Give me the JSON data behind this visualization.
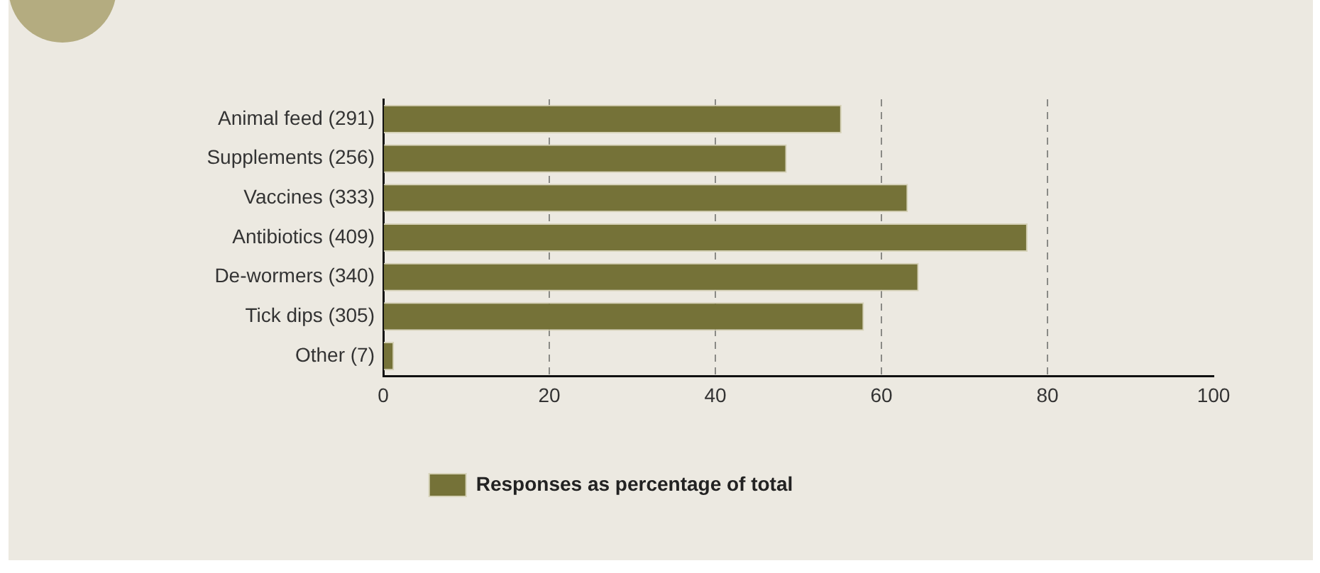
{
  "chart_data": {
    "type": "bar",
    "orientation": "horizontal",
    "categories": [
      "Animal feed (291)",
      "Supplements (256)",
      "Vaccines (333)",
      "Antibiotics (409)",
      "De-wormers (340)",
      "Tick dips (305)",
      "Other (7)"
    ],
    "series": [
      {
        "name": "Responses as percentage of total",
        "color": "#757238",
        "values": [
          55.2,
          48.6,
          63.2,
          77.6,
          64.5,
          57.9,
          1.3
        ]
      }
    ],
    "xlim": [
      0,
      100
    ],
    "xticks": [
      0,
      20,
      40,
      60,
      80,
      100
    ],
    "grid": "x",
    "legend": "bottom"
  }
}
